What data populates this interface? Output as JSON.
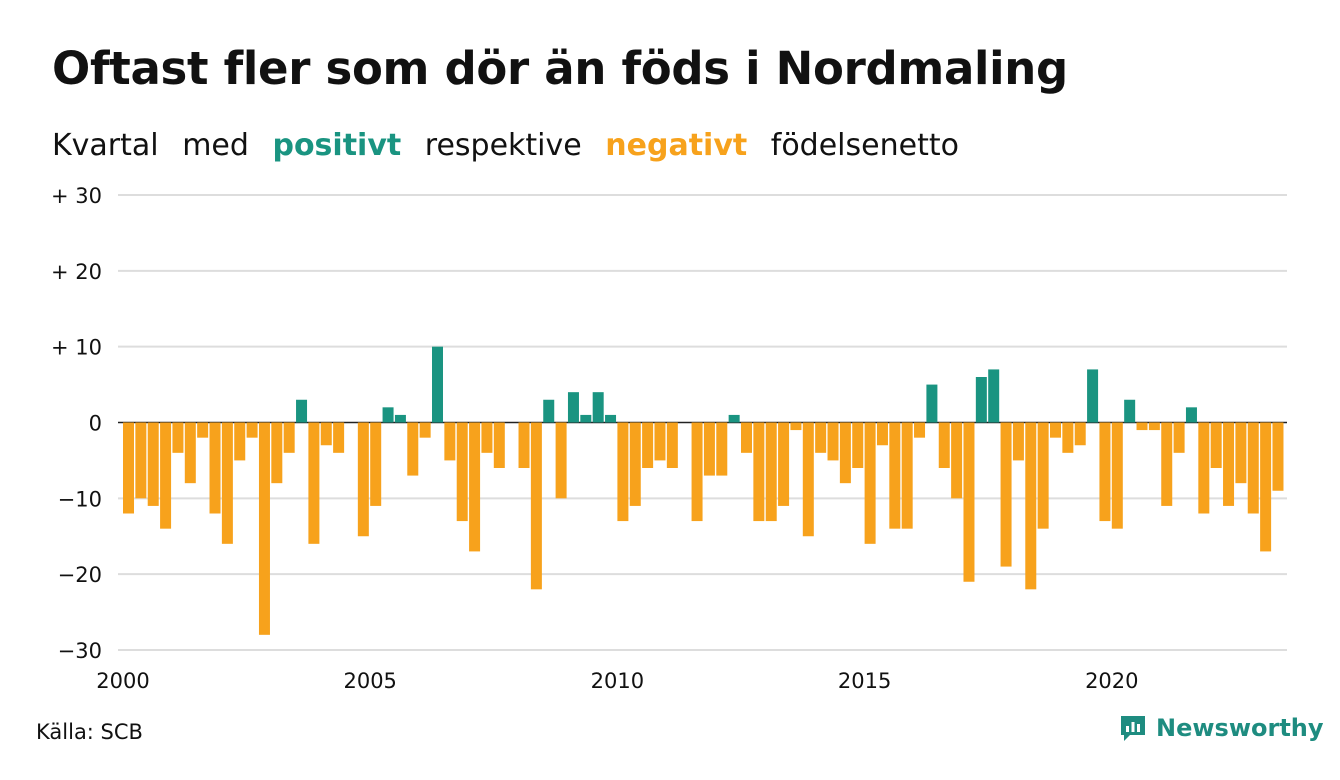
{
  "title": "Oftast fler som dör än föds i Nordmaling",
  "subtitle": {
    "w1": "Kvartal",
    "w2": "med",
    "positive": "positivt",
    "w3": "respektive",
    "negative": "negativt",
    "w4": "födelsenetto"
  },
  "colors": {
    "positive": "#1a9481",
    "negative": "#f7a21c",
    "grid": "#dddddd",
    "axis": "#222222"
  },
  "source": "Källa: SCB",
  "logo": {
    "text": "Newsworthy",
    "icon": "chart-bubble-icon"
  },
  "chart_data": {
    "type": "bar",
    "title": "Oftast fler som dör än föds i Nordmaling",
    "ylim": [
      -30,
      30
    ],
    "yticks": [
      30,
      20,
      10,
      0,
      -10,
      -20,
      -30
    ],
    "ytick_labels": [
      "+ 30",
      "+ 20",
      "+ 10",
      "0",
      "−10",
      "−20",
      "−30"
    ],
    "xtick_labels": [
      "2000",
      "2005",
      "2010",
      "2015",
      "2020"
    ],
    "xtick_years": [
      2000,
      2005,
      2010,
      2015,
      2020
    ],
    "start_year": 2000,
    "grid": true,
    "values": [
      -12,
      -10,
      -11,
      -14,
      -4,
      -8,
      -2,
      -12,
      -16,
      -5,
      -2,
      -28,
      -8,
      -4,
      3,
      -16,
      -3,
      -4,
      0,
      -15,
      -11,
      2,
      1,
      -7,
      -2,
      10,
      -5,
      -13,
      -17,
      -4,
      -6,
      0,
      -6,
      -22,
      3,
      -10,
      4,
      1,
      4,
      1,
      -13,
      -11,
      -6,
      -5,
      -6,
      0,
      -13,
      -7,
      -7,
      1,
      -4,
      -13,
      -13,
      -11,
      -1,
      -15,
      -4,
      -5,
      -8,
      -6,
      -16,
      -3,
      -14,
      -14,
      -2,
      5,
      -6,
      -10,
      -21,
      6,
      7,
      -19,
      -5,
      -22,
      -14,
      -2,
      -4,
      -3,
      7,
      -13,
      -14,
      3,
      -1,
      -1,
      -11,
      -4,
      2,
      -12,
      -6,
      -11,
      -8,
      -12,
      -17,
      -9
    ]
  }
}
